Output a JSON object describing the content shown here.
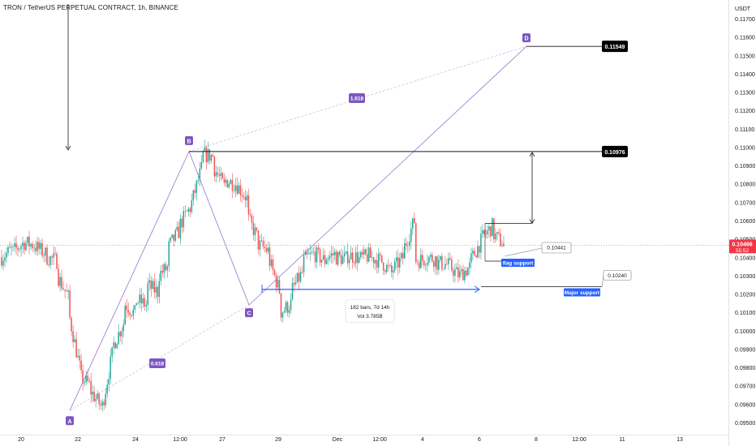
{
  "header": {
    "symbol": "TRON / TetherUS PERPETUAL CONTRACT",
    "interval": "1h",
    "exchange": "BINANCE",
    "title": "TRON / TetherUS PERPETUAL CONTRACT, 1h, BINANCE"
  },
  "axis": {
    "currency": "USDT",
    "current_price": "0.10466",
    "countdown": "55:52"
  },
  "chart_data": {
    "type": "candlestick",
    "title": "TRON / TetherUS PERPETUAL CONTRACT, 1h, BINANCE",
    "y_unit": "USDT",
    "ylim": [
      0.0947,
      0.1178
    ],
    "y_ticks": [
      "0.11700",
      "0.11600",
      "0.11500",
      "0.11400",
      "0.11300",
      "0.11200",
      "0.11100",
      "0.11000",
      "0.10900",
      "0.10800",
      "0.10700",
      "0.10600",
      "0.10500",
      "0.10400",
      "0.10300",
      "0.10200",
      "0.10100",
      "0.10000",
      "0.09900",
      "0.09800",
      "0.09700",
      "0.09600",
      "0.09500"
    ],
    "x_ticks": [
      "20",
      "22",
      "24",
      "12:00",
      "27",
      "29",
      "Dec",
      "12:00",
      "4",
      "6",
      "8",
      "12:00",
      "11",
      "13"
    ],
    "grid": false,
    "price_path": [
      [
        0.104,
        0.10445
      ],
      [
        0.1043,
        0.1048
      ],
      [
        0.1048,
        0.10465
      ],
      [
        0.1046,
        0.10415
      ],
      [
        0.104,
        0.1038
      ],
      [
        0.103,
        0.1018
      ],
      [
        0.101,
        0.098
      ],
      [
        0.0975,
        0.097
      ],
      [
        0.0967,
        0.0958
      ],
      [
        0.0958,
        0.099
      ],
      [
        0.0992,
        0.1005
      ],
      [
        0.1015,
        0.1009
      ],
      [
        0.1017,
        0.1014
      ],
      [
        0.1025,
        0.1021
      ],
      [
        0.103,
        0.1035
      ],
      [
        0.1046,
        0.1055
      ],
      [
        0.1058,
        0.1068
      ],
      [
        0.1069,
        0.109
      ],
      [
        0.1096,
        0.1095
      ],
      [
        0.1089,
        0.1078
      ],
      [
        0.1082,
        0.108
      ],
      [
        0.108,
        0.1072
      ],
      [
        0.1062,
        0.105
      ],
      [
        0.1047,
        0.1043
      ],
      [
        0.1038,
        0.102
      ],
      [
        0.101,
        0.1015
      ],
      [
        0.1022,
        0.1032
      ],
      [
        0.1038,
        0.1042
      ],
      [
        0.1042,
        0.1038
      ],
      [
        0.104,
        0.1042
      ],
      [
        0.104,
        0.1039
      ],
      [
        0.1041,
        0.104
      ],
      [
        0.1039,
        0.1041
      ],
      [
        0.104,
        0.1038
      ],
      [
        0.1038,
        0.1031
      ],
      [
        0.1033,
        0.104
      ],
      [
        0.1044,
        0.106
      ],
      [
        0.1038,
        0.1039
      ],
      [
        0.104,
        0.1039
      ],
      [
        0.1037,
        0.1036
      ],
      [
        0.1036,
        0.103
      ],
      [
        0.103,
        0.1035
      ],
      [
        0.1038,
        0.1049
      ],
      [
        0.105,
        0.1057
      ],
      [
        0.1053,
        0.1047
      ]
    ],
    "annotations": {
      "points": [
        {
          "label": "A",
          "value": 0.09565
        },
        {
          "label": "B",
          "value": 0.10976
        },
        {
          "label": "C",
          "value": 0.1014
        },
        {
          "label": "D",
          "value": 0.11549
        }
      ],
      "ratios": [
        "0.618",
        "1.618"
      ],
      "price_labels": [
        "0.11549",
        "0.10976",
        "0.10441",
        "0.10240"
      ],
      "zones": {
        "flag": "flag support",
        "major": "Major support"
      },
      "range_measure": {
        "bars": "182 bars, 7d 14h",
        "volume": "Vol 3.785B"
      }
    }
  }
}
